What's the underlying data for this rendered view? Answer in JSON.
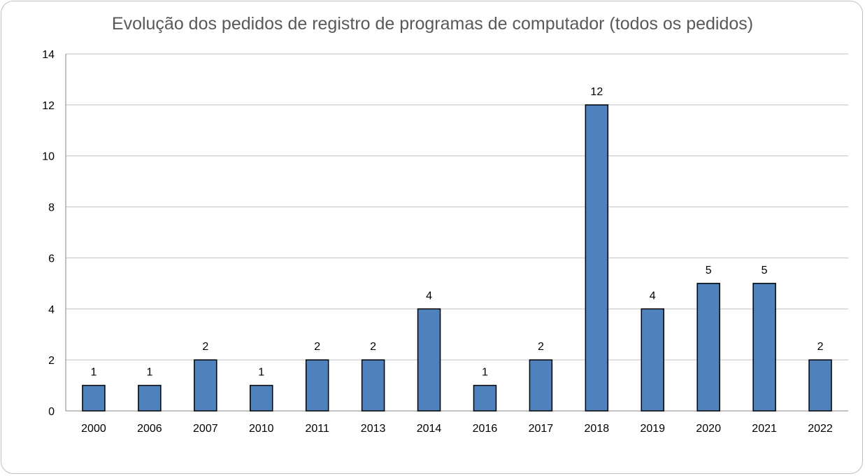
{
  "chart_data": {
    "type": "bar",
    "title": "Evolução dos pedidos de registro de programas de computador (todos os pedidos)",
    "xlabel": "",
    "ylabel": "",
    "categories": [
      "2000",
      "2006",
      "2007",
      "2010",
      "2011",
      "2013",
      "2014",
      "2016",
      "2017",
      "2018",
      "2019",
      "2020",
      "2021",
      "2022"
    ],
    "values": [
      1,
      1,
      2,
      1,
      2,
      2,
      4,
      1,
      2,
      12,
      4,
      5,
      5,
      2
    ],
    "ylim": [
      0,
      14
    ],
    "yticks": [
      "0",
      "2",
      "4",
      "6",
      "8",
      "10",
      "12",
      "14"
    ],
    "grid": true,
    "data_labels": true,
    "bar_color": "#4f81bd",
    "bar_border_color": "#000000",
    "grid_color": "#bfbfbf"
  }
}
